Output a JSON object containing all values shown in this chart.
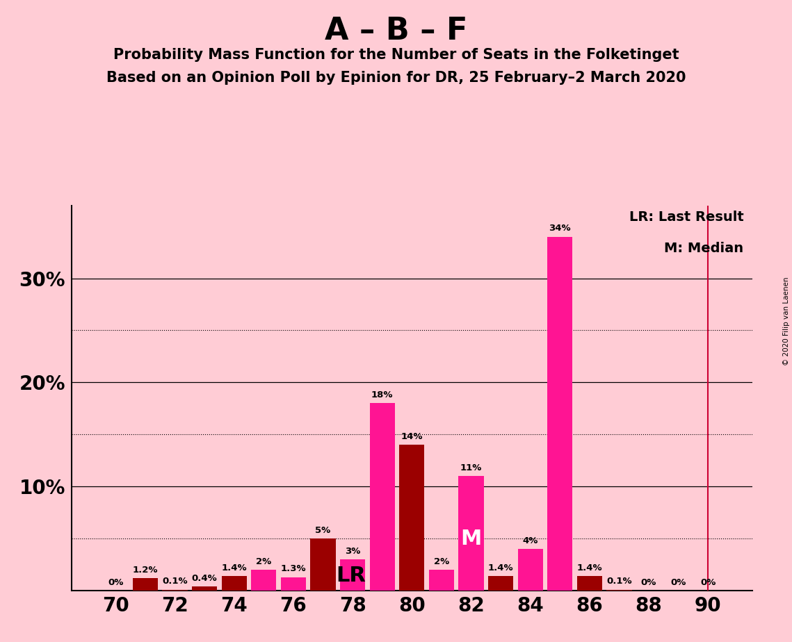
{
  "title": "A – B – F",
  "subtitle1": "Probability Mass Function for the Number of Seats in the Folketinget",
  "subtitle2": "Based on an Opinion Poll by Epinion for DR, 25 February–2 March 2020",
  "copyright": "© 2020 Filip van Laenen",
  "background_color": "#FFCCD5",
  "bar_color_dark": "#9B0000",
  "bar_color_bright": "#FF1493",
  "lr_line_color": "#CC0033",
  "seats": [
    70,
    71,
    72,
    73,
    74,
    75,
    76,
    77,
    78,
    79,
    80,
    81,
    82,
    83,
    84,
    85,
    86,
    87,
    88,
    89,
    90
  ],
  "values": [
    0.0,
    1.2,
    0.1,
    0.4,
    1.4,
    2.0,
    1.3,
    5.0,
    3.0,
    18.0,
    14.0,
    2.0,
    11.0,
    1.4,
    4.0,
    34.0,
    1.4,
    0.1,
    0.0,
    0.0,
    0.0
  ],
  "colors": [
    "dark",
    "dark",
    "dark",
    "dark",
    "dark",
    "bright",
    "bright",
    "dark",
    "bright",
    "bright",
    "dark",
    "bright",
    "bright",
    "dark",
    "bright",
    "bright",
    "dark",
    "dark",
    "bright",
    "bright",
    "dark"
  ],
  "labels": [
    "0%",
    "1.2%",
    "0.1%",
    "0.4%",
    "1.4%",
    "2%",
    "1.3%",
    "5%",
    "3%",
    "18%",
    "14%",
    "2%",
    "11%",
    "1.4%",
    "4%",
    "34%",
    "1.4%",
    "0.1%",
    "0%",
    "0%",
    "0%"
  ],
  "lr_seat": 78,
  "median_seat": 82,
  "lr_line_x": 90,
  "ymax": 37,
  "solid_gridlines": [
    10,
    20,
    30
  ],
  "dotted_gridlines": [
    5,
    15,
    25
  ],
  "ytick_vals": [
    10,
    20,
    30
  ],
  "xticks": [
    70,
    72,
    74,
    76,
    78,
    80,
    82,
    84,
    86,
    88,
    90
  ],
  "legend_lr": "LR: Last Result",
  "legend_m": "M: Median"
}
